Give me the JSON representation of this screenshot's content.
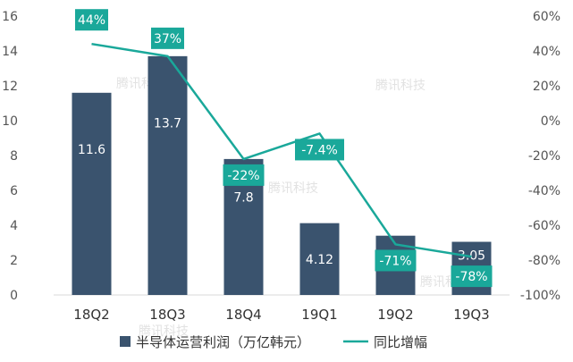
{
  "chart_data": {
    "type": "bar",
    "categories": [
      "18Q2",
      "18Q3",
      "18Q4",
      "19Q1",
      "19Q2",
      "19Q3"
    ],
    "series": [
      {
        "name": "半导体运营利润（万亿韩元）",
        "type": "bar",
        "axis": "left",
        "color": "#3a536e",
        "values": [
          11.6,
          13.7,
          7.8,
          4.12,
          3.4,
          3.05
        ],
        "labels": [
          "11.6",
          "13.7",
          "7.8",
          "4.12",
          "3.4",
          "3.05"
        ]
      },
      {
        "name": "同比增幅",
        "type": "line",
        "axis": "right",
        "color": "#1aa89a",
        "values": [
          44,
          37,
          -22,
          -7.4,
          -71,
          -78
        ],
        "labels": [
          "44%",
          "37%",
          "-22%",
          "-7.4%",
          "-71%",
          "-78%"
        ]
      }
    ],
    "left_axis": {
      "ylim": [
        0,
        16
      ],
      "ticks": [
        "0",
        "2",
        "4",
        "6",
        "8",
        "10",
        "12",
        "14",
        "16"
      ]
    },
    "right_axis": {
      "ylim": [
        -100,
        60
      ],
      "ticks": [
        "-100%",
        "-80%",
        "-60%",
        "-40%",
        "-20%",
        "0%",
        "20%",
        "40%",
        "60%"
      ]
    },
    "grid": false,
    "legend_position": "bottom"
  },
  "watermark": "腾讯科技"
}
